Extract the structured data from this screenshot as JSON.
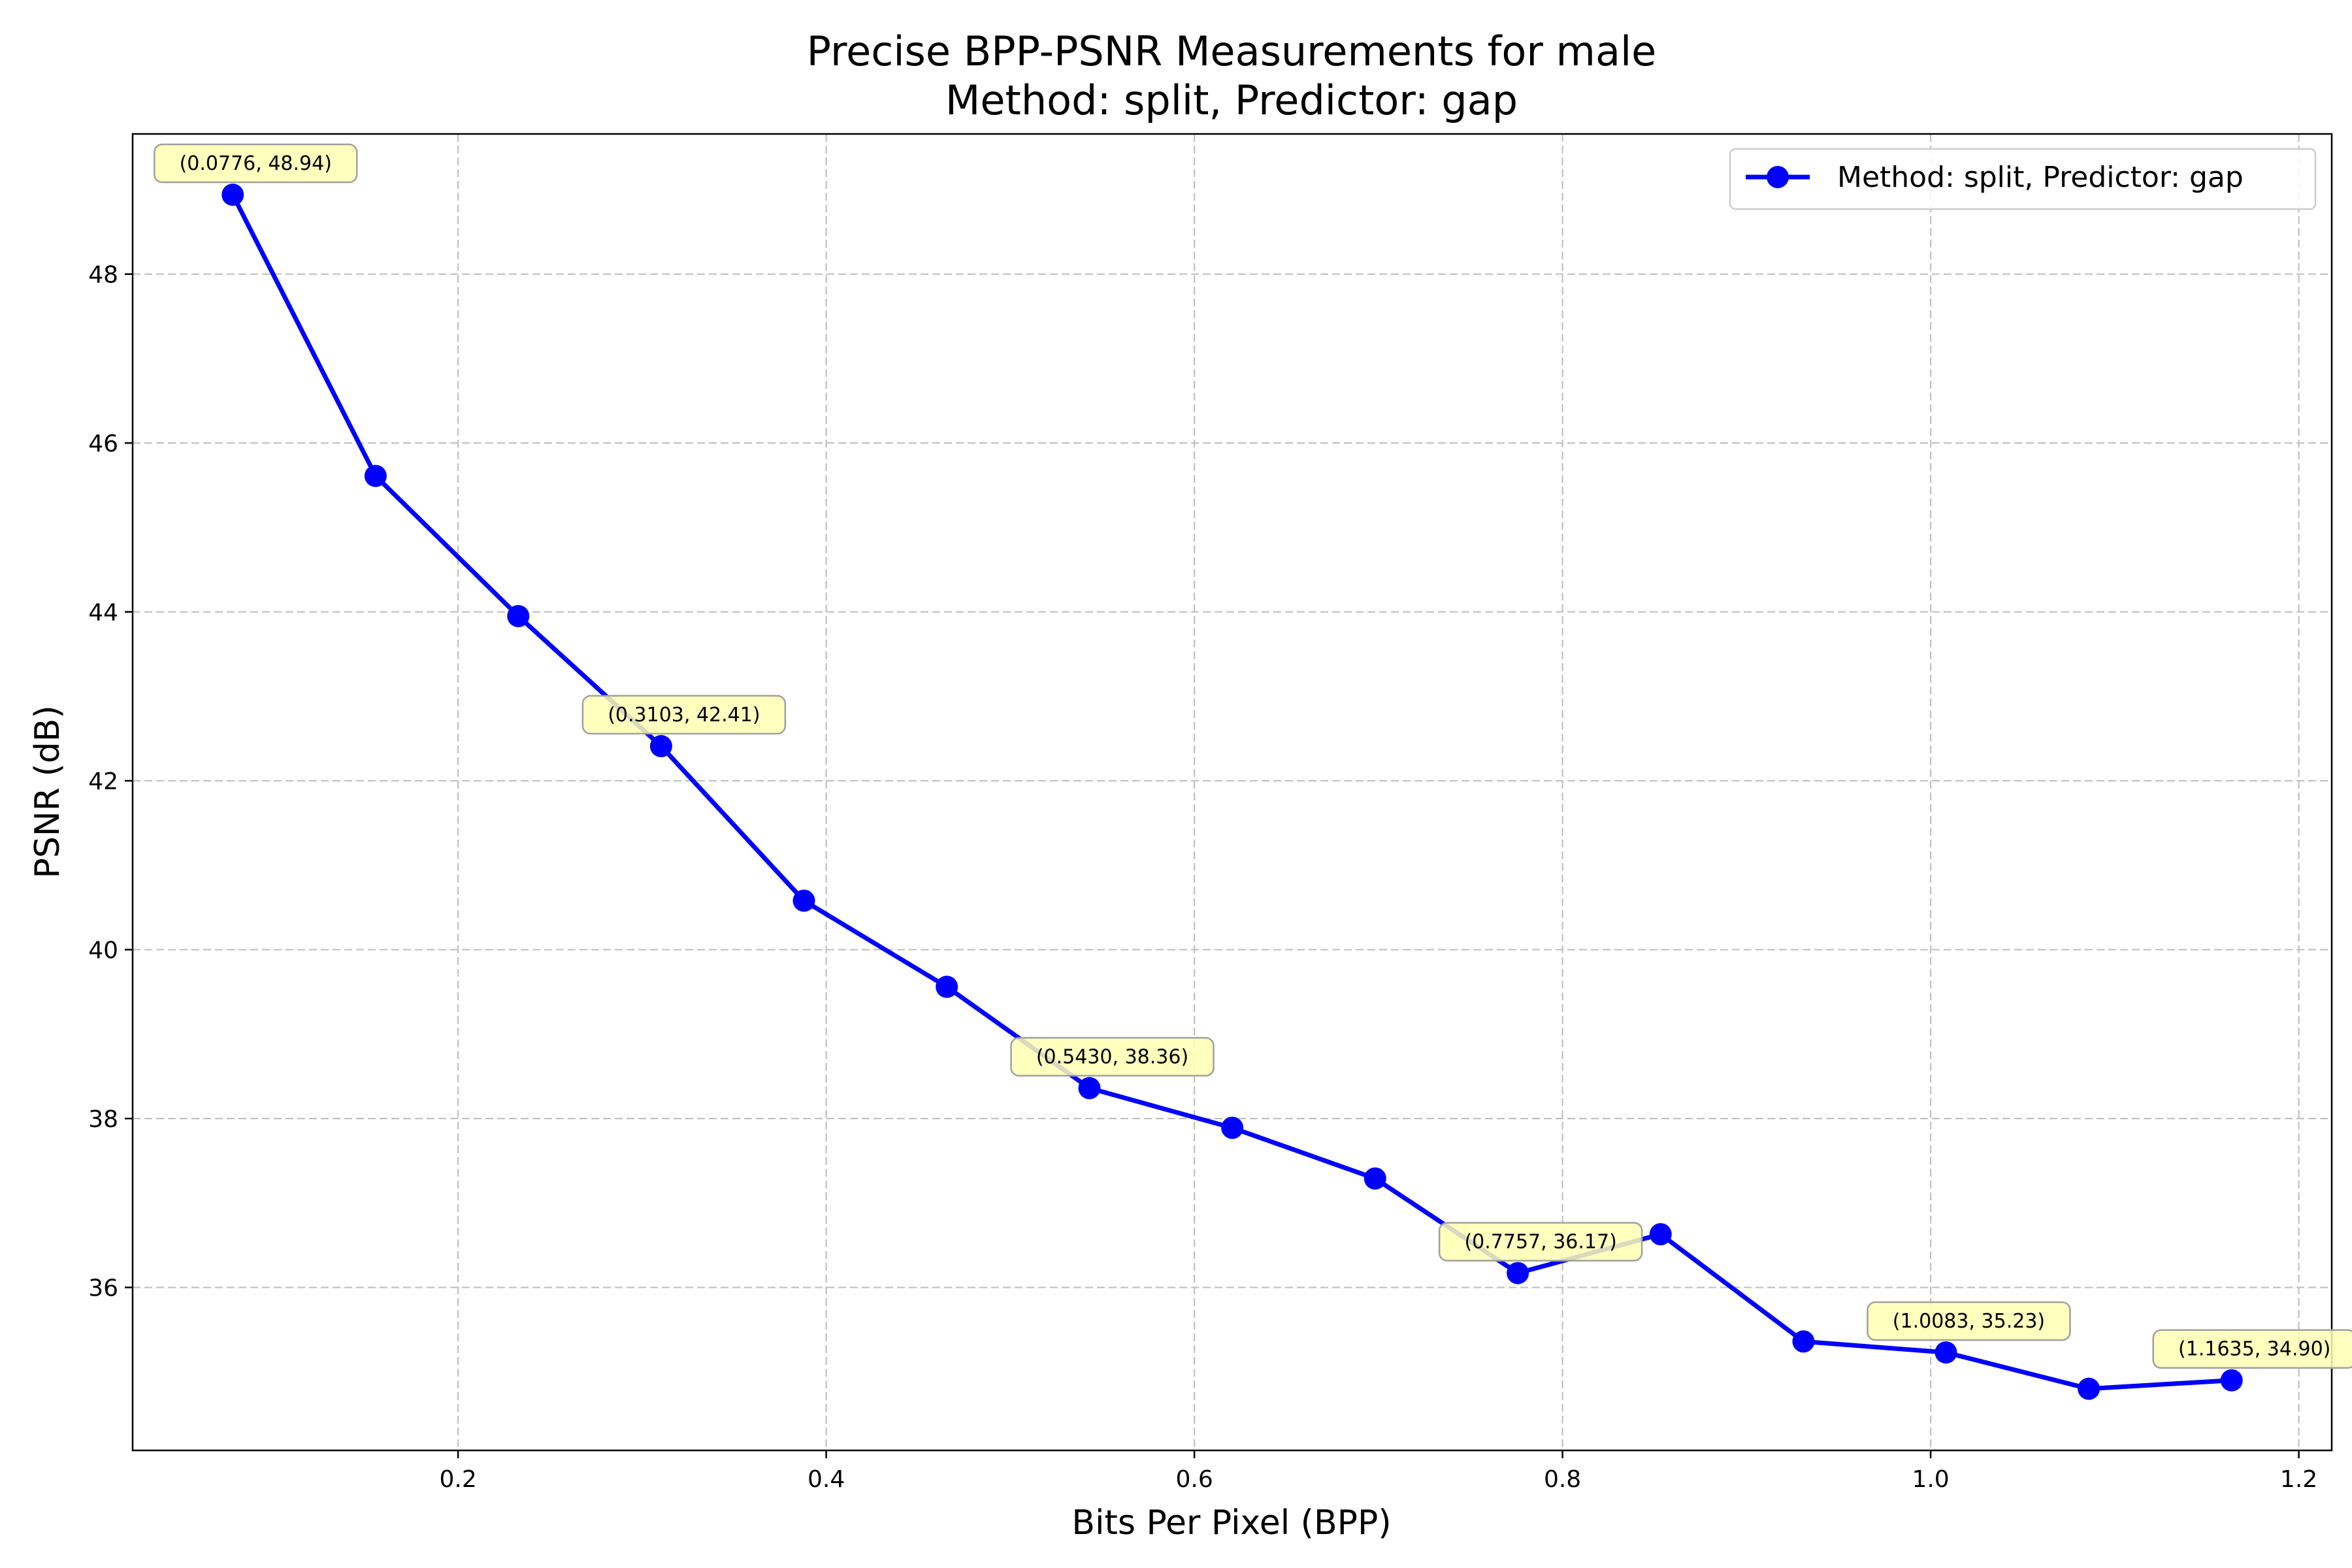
{
  "chart_data": {
    "type": "line",
    "title": "Precise BPP-PSNR Measurements for male",
    "subtitle": "Method: split, Predictor: gap",
    "xlabel": "Bits Per Pixel (BPP)",
    "ylabel": "PSNR (dB)",
    "xlim": [
      0.0232,
      1.2179
    ],
    "ylim": [
      34.07,
      49.66
    ],
    "xticks": [
      0.2,
      0.4,
      0.6,
      0.8,
      1.0,
      1.2
    ],
    "xtick_labels": [
      "0.2",
      "0.4",
      "0.6",
      "0.8",
      "1.0",
      "1.2"
    ],
    "yticks": [
      36,
      38,
      40,
      42,
      44,
      46,
      48
    ],
    "ytick_labels": [
      "36",
      "38",
      "40",
      "42",
      "44",
      "46",
      "48"
    ],
    "grid": true,
    "grid_style": "dashed",
    "legend_position": "top-right",
    "series": [
      {
        "name": "Method: split, Predictor: gap",
        "color": "#0000ff",
        "marker": "circle",
        "x": [
          0.0776,
          0.1552,
          0.2327,
          0.3103,
          0.3879,
          0.4655,
          0.543,
          0.6206,
          0.6982,
          0.7757,
          0.8533,
          0.9309,
          1.0083,
          1.0859,
          1.1635
        ],
        "y": [
          48.94,
          45.61,
          43.95,
          42.41,
          40.58,
          39.56,
          38.36,
          37.89,
          37.29,
          36.17,
          36.63,
          35.36,
          35.23,
          34.8,
          34.9
        ]
      }
    ],
    "annotations": [
      {
        "x": 0.0776,
        "y": 48.94,
        "text": "(0.0776, 48.94)"
      },
      {
        "x": 0.3103,
        "y": 42.41,
        "text": "(0.3103, 42.41)"
      },
      {
        "x": 0.543,
        "y": 38.36,
        "text": "(0.5430, 38.36)"
      },
      {
        "x": 0.7757,
        "y": 36.17,
        "text": "(0.7757, 36.17)"
      },
      {
        "x": 1.0083,
        "y": 35.23,
        "text": "(1.0083, 35.23)"
      },
      {
        "x": 1.1635,
        "y": 34.9,
        "text": "(1.1635, 34.90)"
      }
    ],
    "annotation_style": {
      "fill": "#ffffb3",
      "stroke": "#a0a0a0"
    },
    "grid_color": "#c0c0c0"
  }
}
